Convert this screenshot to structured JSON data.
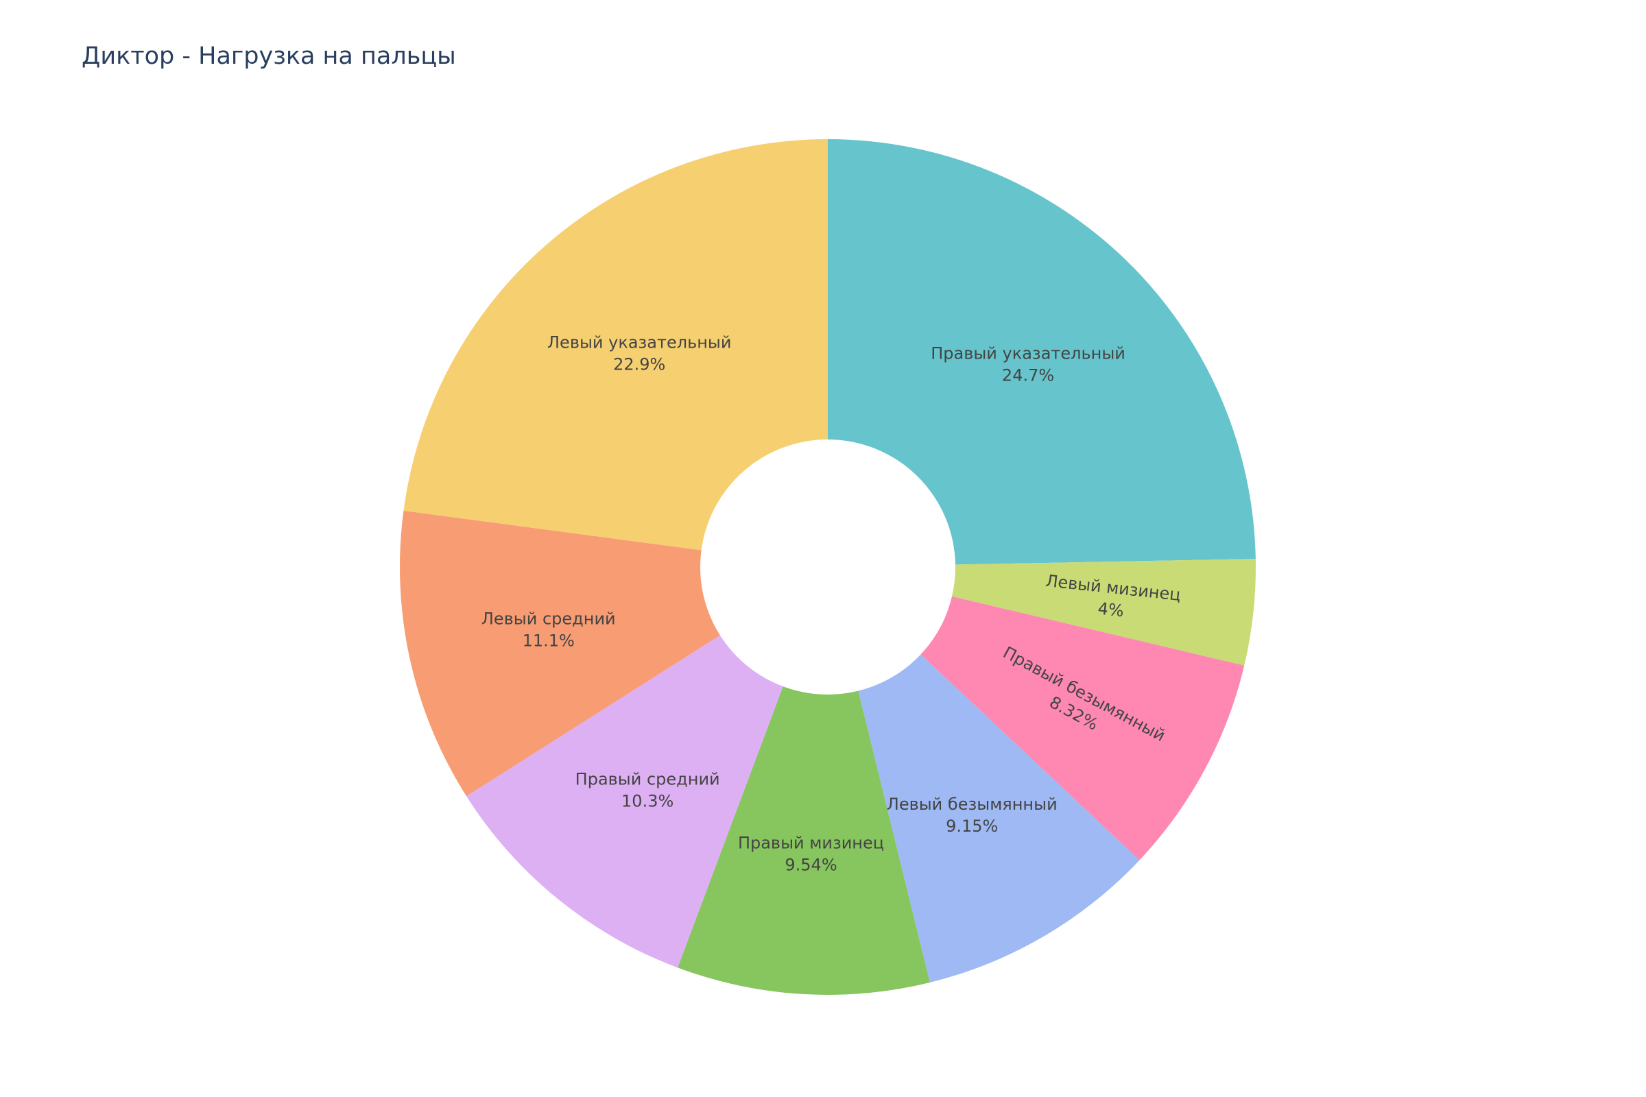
{
  "chart_data": {
    "type": "pie",
    "hole": true,
    "title": "Диктор - Нагрузка на пальцы",
    "direction": "clockwise",
    "start": "top",
    "slices": [
      {
        "label": "Правый указательный",
        "value": 24.7,
        "text": "24.7%",
        "color": "#66c5cc"
      },
      {
        "label": "Левый мизинец",
        "value": 4.0,
        "text": "4%",
        "color": "#c9db74"
      },
      {
        "label": "Правый безымянный",
        "value": 8.32,
        "text": "8.32%",
        "color": "#fe88b1"
      },
      {
        "label": "Левый безымянный",
        "value": 9.15,
        "text": "9.15%",
        "color": "#9eb9f3"
      },
      {
        "label": "Правый мизинец",
        "value": 9.54,
        "text": "9.54%",
        "color": "#87c55f"
      },
      {
        "label": "Правый средний",
        "value": 10.3,
        "text": "10.3%",
        "color": "#dcb0f2"
      },
      {
        "label": "Левый средний",
        "value": 11.1,
        "text": "11.1%",
        "color": "#f89c74"
      },
      {
        "label": "Левый указательный",
        "value": 22.9,
        "text": "22.9%",
        "color": "#f6cf71"
      }
    ]
  }
}
